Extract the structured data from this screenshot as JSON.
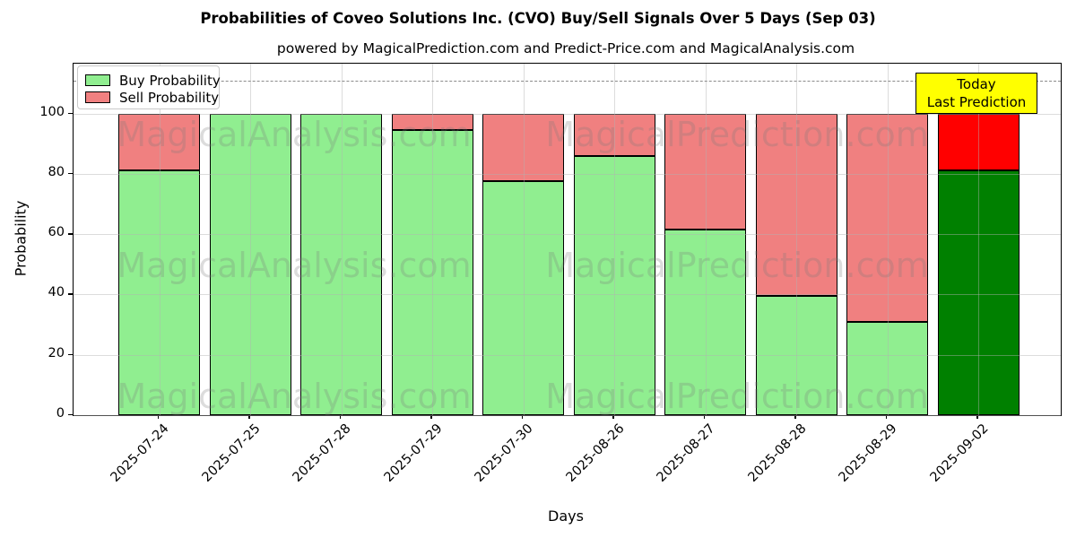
{
  "chart_data": {
    "type": "bar",
    "stacked": true,
    "title": "Probabilities of Coveo Solutions Inc. (CVO) Buy/Sell Signals Over 5 Days (Sep 03)",
    "subtitle": "powered by MagicalPrediction.com and Predict-Price.com and MagicalAnalysis.com",
    "xlabel": "Days",
    "ylabel": "Probability",
    "ylim": [
      0,
      116.5
    ],
    "yticks": [
      0,
      20,
      40,
      60,
      80,
      100
    ],
    "dashed_line_y": 111,
    "grid": true,
    "legend_position": "upper left",
    "categories": [
      "2025-07-24",
      "2025-07-25",
      "2025-07-28",
      "2025-07-29",
      "2025-07-30",
      "2025-08-26",
      "2025-08-27",
      "2025-08-28",
      "2025-08-29",
      "2025-09-02"
    ],
    "series": [
      {
        "name": "Buy Probability",
        "color": "#90ee90",
        "last_bar_color": "#008000",
        "values": [
          81,
          100,
          100,
          94.5,
          77.5,
          86,
          61.5,
          39.5,
          31,
          81
        ]
      },
      {
        "name": "Sell Probability",
        "color": "#f08080",
        "last_bar_color": "#ff0000",
        "values": [
          19,
          0,
          0,
          5.5,
          22.5,
          14,
          38.5,
          60.5,
          69,
          19
        ]
      }
    ]
  },
  "legend": {
    "items": [
      {
        "label": "Buy Probability",
        "color": "#90ee90"
      },
      {
        "label": "Sell Probability",
        "color": "#f08080"
      }
    ]
  },
  "annotation": {
    "line1": "Today",
    "line2": "Last Prediction",
    "bg_color": "#ffff00"
  },
  "watermarks": {
    "left": "MagicalAnalysis.com",
    "right": "MagicalPrediction.com"
  }
}
